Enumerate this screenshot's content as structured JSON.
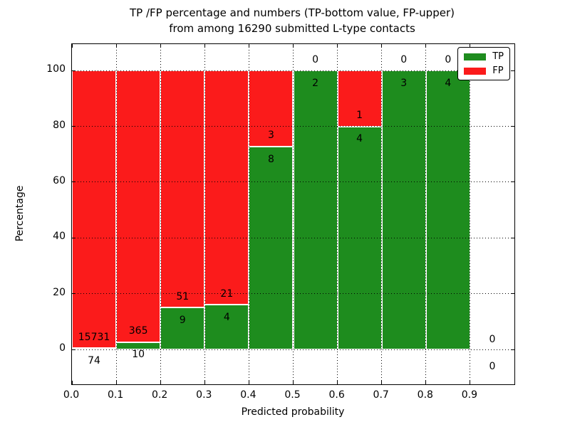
{
  "figure": {
    "title_line1": "TP /FP percentage and numbers (TP-bottom value, FP-upper)",
    "title_line2": "from among 16290 submitted L-type contacts",
    "xlabel": "Predicted probability",
    "ylabel": "Percentage"
  },
  "chart_data": {
    "type": "bar",
    "stacked": true,
    "title": "TP /FP percentage and numbers (TP-bottom value, FP-upper)\nfrom among 16290 submitted L-type contacts",
    "xlabel": "Predicted probability",
    "ylabel": "Percentage",
    "total_contacts": 16290,
    "xlim": [
      0.0,
      1.0
    ],
    "ylim": [
      -12.5,
      109.5
    ],
    "grid": true,
    "grid_style": "dotted",
    "x_ticks": [
      "0.0",
      "0.1",
      "0.2",
      "0.3",
      "0.4",
      "0.5",
      "0.6",
      "0.7",
      "0.8",
      "0.9"
    ],
    "y_ticks": [
      0,
      20,
      40,
      60,
      80,
      100
    ],
    "y_tick_labels": [
      "0",
      "20",
      "40",
      "60",
      "80",
      "100"
    ],
    "legend": {
      "position": "upper right",
      "entries": [
        {
          "label": "TP",
          "color": "#1e8c1e"
        },
        {
          "label": "FP",
          "color": "#fb1b1b"
        }
      ]
    },
    "bins": [
      {
        "x0": 0.0,
        "x1": 0.1,
        "tp": 74,
        "fp": 15731,
        "tp_pct": 0.47,
        "fp_pct": 99.53
      },
      {
        "x0": 0.1,
        "x1": 0.2,
        "tp": 10,
        "fp": 365,
        "tp_pct": 2.67,
        "fp_pct": 97.33
      },
      {
        "x0": 0.2,
        "x1": 0.3,
        "tp": 9,
        "fp": 51,
        "tp_pct": 15.0,
        "fp_pct": 85.0
      },
      {
        "x0": 0.3,
        "x1": 0.4,
        "tp": 4,
        "fp": 21,
        "tp_pct": 16.0,
        "fp_pct": 84.0
      },
      {
        "x0": 0.4,
        "x1": 0.5,
        "tp": 8,
        "fp": 3,
        "tp_pct": 72.73,
        "fp_pct": 27.27
      },
      {
        "x0": 0.5,
        "x1": 0.6,
        "tp": 2,
        "fp": 0,
        "tp_pct": 100.0,
        "fp_pct": 0.0
      },
      {
        "x0": 0.6,
        "x1": 0.7,
        "tp": 4,
        "fp": 1,
        "tp_pct": 80.0,
        "fp_pct": 20.0
      },
      {
        "x0": 0.7,
        "x1": 0.8,
        "tp": 3,
        "fp": 0,
        "tp_pct": 100.0,
        "fp_pct": 0.0
      },
      {
        "x0": 0.8,
        "x1": 0.9,
        "tp": 4,
        "fp": 0,
        "tp_pct": 100.0,
        "fp_pct": 0.0
      },
      {
        "x0": 0.9,
        "x1": 1.0,
        "tp": 0,
        "fp": 0,
        "tp_pct": 0.0,
        "fp_pct": 0.0
      }
    ]
  }
}
